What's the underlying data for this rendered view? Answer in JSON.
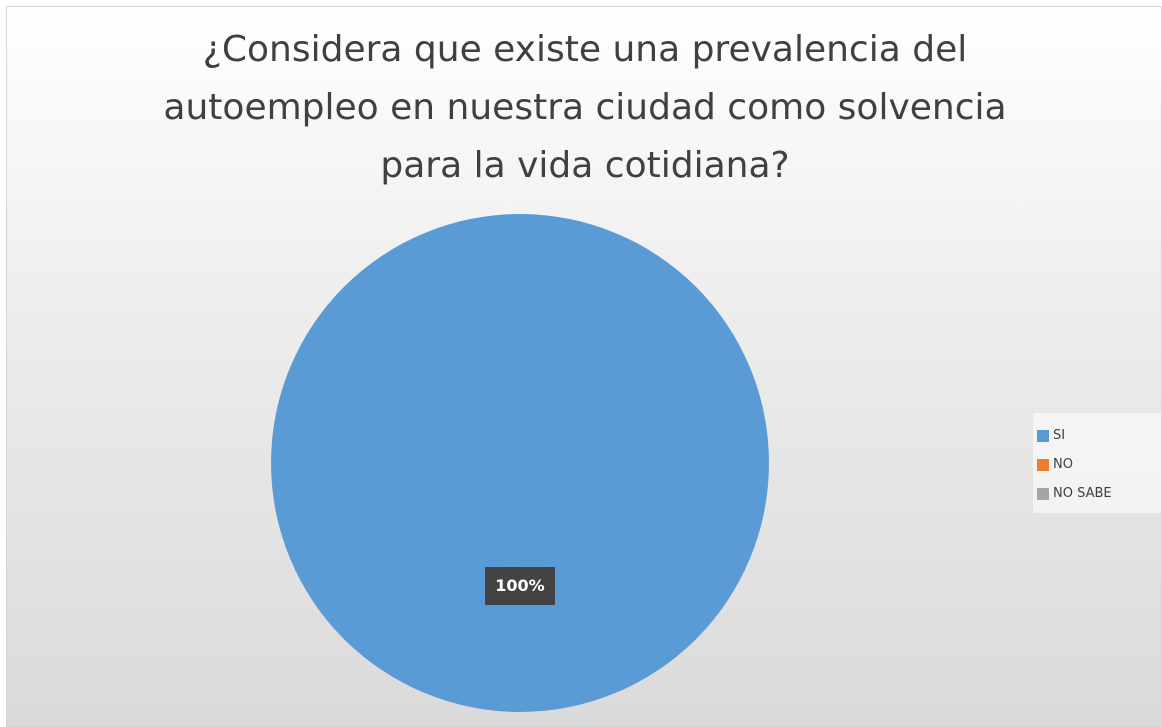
{
  "chart_data": {
    "type": "pie",
    "title_lines": [
      "¿Considera que existe una prevalencia del",
      "autoempleo en nuestra ciudad como solvencia",
      "para la vida cotidiana?"
    ],
    "categories": [
      "SI",
      "NO",
      "NO SABE"
    ],
    "values": [
      100,
      0,
      0
    ],
    "colors": [
      "#5b9bd5",
      "#ed7d31",
      "#a5a5a5"
    ],
    "data_labels": [
      "100%"
    ],
    "legend": "right"
  }
}
